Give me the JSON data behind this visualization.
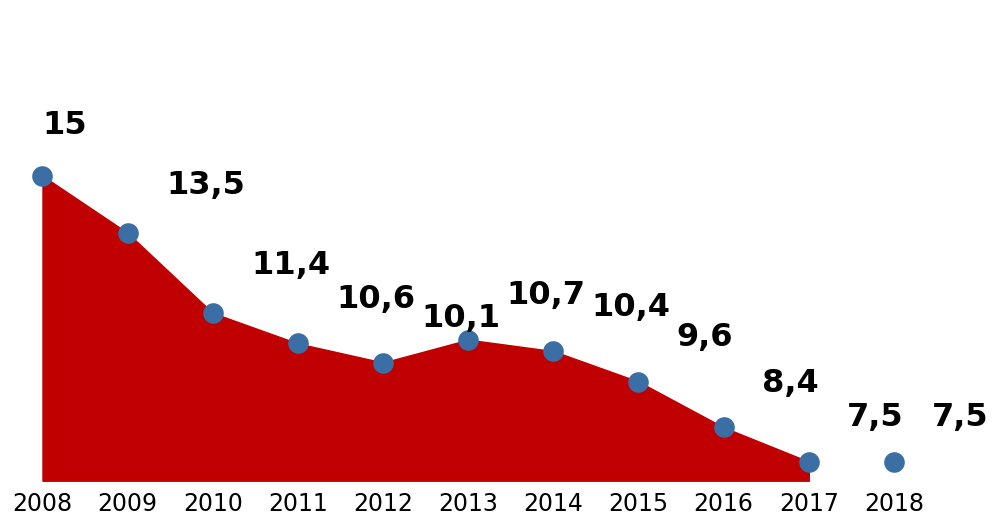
{
  "years": [
    2008,
    2009,
    2010,
    2011,
    2012,
    2013,
    2014,
    2015,
    2016,
    2017,
    2018
  ],
  "values": [
    15.0,
    13.5,
    11.4,
    10.6,
    10.1,
    10.7,
    10.4,
    9.6,
    8.4,
    7.5,
    7.5
  ],
  "labels": [
    "15",
    "13,5",
    "11,4",
    "10,6",
    "10,1",
    "10,7",
    "10,4",
    "9,6",
    "8,4",
    "7,5",
    "7,5"
  ],
  "label_offsets_x": [
    0,
    0.45,
    0.45,
    0.45,
    0.45,
    0.45,
    0.45,
    0.45,
    0.45,
    0.45,
    0.45
  ],
  "label_offsets_y": [
    0.9,
    0.85,
    0.85,
    0.75,
    0.75,
    0.75,
    0.75,
    0.75,
    0.75,
    0.75,
    0.75
  ],
  "fill_color": "#c00000",
  "dot_color": "#3a6ea5",
  "dot_size": 220,
  "dot_zorder": 5,
  "label_fontsize": 23,
  "tick_fontsize": 17,
  "background_color": "#ffffff",
  "ylim_bottom": 7.0,
  "ylim_top": 19.5,
  "xlim_left": 2007.55,
  "xlim_right": 2018.7,
  "fill_baseline": 7.0,
  "fill_years_end": 2017
}
